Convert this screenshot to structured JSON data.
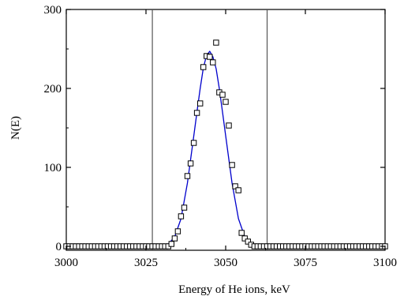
{
  "chart_data": {
    "type": "scatter",
    "xlabel": "Energy of He ions, keV",
    "ylabel": "N(E)",
    "xlim": [
      3000,
      3100
    ],
    "ylim": [
      -5,
      300
    ],
    "xticks": [
      3000,
      3025,
      3050,
      3075,
      3100
    ],
    "xtick_labels": [
      "3000",
      "3025",
      "3050",
      "3075",
      "3100"
    ],
    "yticks": [
      0,
      100,
      200,
      300
    ],
    "ytick_labels": [
      "0",
      "100",
      "200",
      "300"
    ],
    "grid": false,
    "legend": "none",
    "vertical_lines": [
      3027,
      3063
    ],
    "series": [
      {
        "marker": "open-square",
        "color": "#000000",
        "x": [
          3000,
          3001,
          3002,
          3003,
          3004,
          3005,
          3006,
          3007,
          3008,
          3009,
          3010,
          3011,
          3012,
          3013,
          3014,
          3015,
          3016,
          3017,
          3018,
          3019,
          3020,
          3021,
          3022,
          3023,
          3024,
          3025,
          3026,
          3027,
          3028,
          3029,
          3030,
          3031,
          3032,
          3033,
          3034,
          3035,
          3036,
          3037,
          3038,
          3039,
          3040,
          3041,
          3042,
          3043,
          3044,
          3045,
          3046,
          3047,
          3048,
          3049,
          3050,
          3051,
          3052,
          3053,
          3054,
          3055,
          3056,
          3057,
          3058,
          3059,
          3060,
          3061,
          3062,
          3063,
          3064,
          3065,
          3066,
          3067,
          3068,
          3069,
          3070,
          3071,
          3072,
          3073,
          3074,
          3075,
          3076,
          3077,
          3078,
          3079,
          3080,
          3081,
          3082,
          3083,
          3084,
          3085,
          3086,
          3087,
          3088,
          3089,
          3090,
          3091,
          3092,
          3093,
          3094,
          3095,
          3096,
          3097,
          3098,
          3099,
          3100
        ],
        "y": [
          0,
          0,
          0,
          0,
          0,
          0,
          0,
          0,
          0,
          0,
          0,
          0,
          0,
          0,
          0,
          0,
          0,
          0,
          0,
          0,
          0,
          0,
          0,
          0,
          0,
          0,
          0,
          0,
          0,
          0,
          0,
          0,
          0,
          3,
          10,
          19,
          38,
          49,
          89,
          105,
          131,
          169,
          181,
          227,
          241,
          240,
          233,
          258,
          195,
          192,
          183,
          153,
          103,
          76,
          71,
          17,
          10,
          6,
          2,
          0,
          0,
          0,
          0,
          0,
          0,
          0,
          0,
          0,
          0,
          0,
          0,
          0,
          0,
          0,
          0,
          0,
          0,
          0,
          0,
          0,
          0,
          0,
          0,
          0,
          0,
          0,
          0,
          0,
          0,
          0,
          0,
          0,
          0,
          0,
          0,
          0,
          0,
          0,
          0,
          0,
          0
        ]
      },
      {
        "type": "line",
        "color": "#0000cc",
        "curve": "gaussian-fit",
        "x": [
          3030,
          3032,
          3034,
          3036,
          3038,
          3040,
          3041,
          3042,
          3043,
          3044,
          3045,
          3046,
          3047,
          3048,
          3049,
          3050,
          3052,
          3054,
          3056,
          3058,
          3060,
          3062
        ],
        "y": [
          0,
          3,
          12,
          35,
          80,
          140,
          170,
          200,
          226,
          242,
          247,
          240,
          225,
          200,
          170,
          140,
          80,
          35,
          12,
          3,
          0,
          0
        ]
      }
    ]
  }
}
